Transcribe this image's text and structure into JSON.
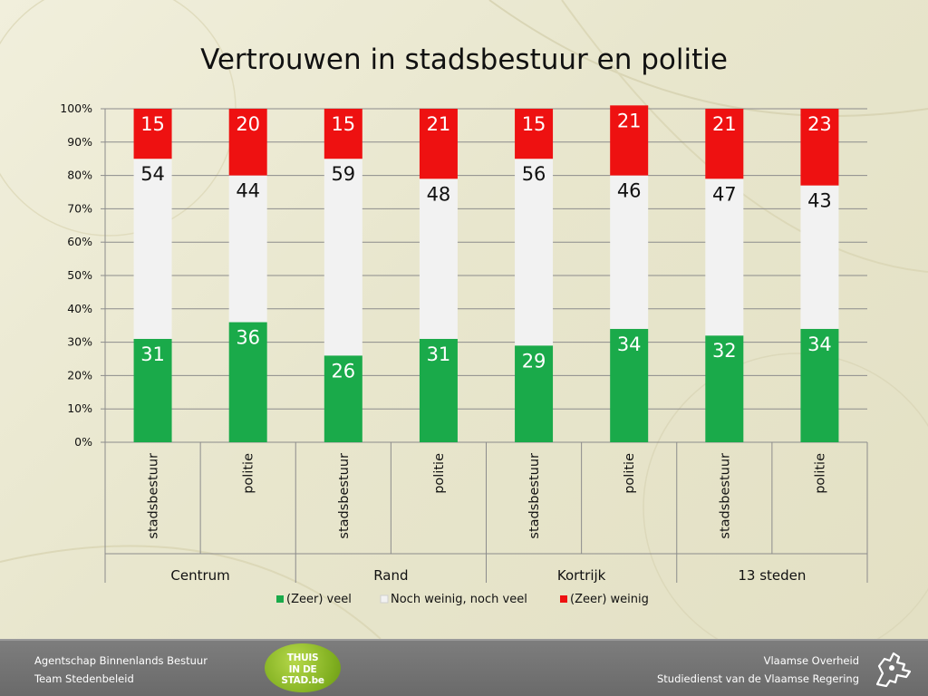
{
  "title": "Vertrouwen in stadsbestuur en politie",
  "chart_data": {
    "type": "bar",
    "stacked": true,
    "y_axis": {
      "ylim": [
        0,
        100
      ],
      "tick_labels": [
        "0%",
        "10%",
        "20%",
        "30%",
        "40%",
        "50%",
        "60%",
        "70%",
        "80%",
        "90%",
        "100%"
      ],
      "grid": true
    },
    "groups": [
      "Centrum",
      "Rand",
      "Kortrijk",
      "13 steden"
    ],
    "categories": [
      "stadsbestuur",
      "politie",
      "stadsbestuur",
      "politie",
      "stadsbestuur",
      "politie",
      "stadsbestuur",
      "politie"
    ],
    "series": [
      {
        "name": "(Zeer) veel",
        "color": "#1aaa4a",
        "values": [
          31,
          36,
          26,
          31,
          29,
          34,
          32,
          34
        ]
      },
      {
        "name": "Noch weinig, noch veel",
        "color": "#f2f2f2",
        "values": [
          54,
          44,
          59,
          48,
          56,
          46,
          47,
          43
        ]
      },
      {
        "name": "(Zeer) weinig",
        "color": "#ee1111",
        "values": [
          15,
          20,
          15,
          21,
          15,
          21,
          21,
          23
        ]
      }
    ],
    "legend_position": "bottom"
  },
  "footer": {
    "left_line1": "Agentschap Binnenlands Bestuur",
    "left_line2": "Team Stedenbeleid",
    "right_line1": "Vlaamse Overheid",
    "right_line2": "Studiedienst van de Vlaamse Regering",
    "logo_text": [
      "THUIS",
      "IN DE",
      "STAD.be"
    ]
  }
}
